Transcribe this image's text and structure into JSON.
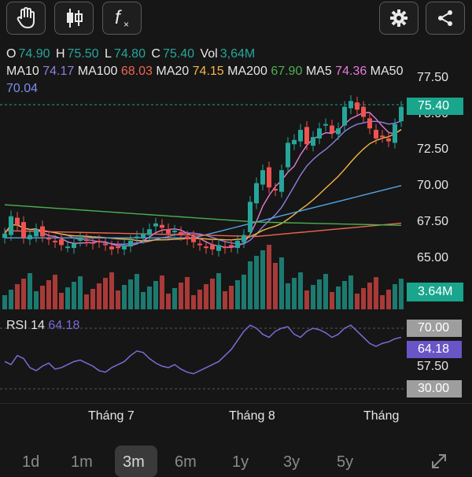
{
  "toolbar": {
    "buttons": [
      {
        "name": "hand-icon"
      },
      {
        "name": "candlestick-icon"
      },
      {
        "name": "function-icon",
        "glyph": "f"
      }
    ],
    "right_buttons": [
      {
        "name": "settings-icon"
      },
      {
        "name": "share-icon"
      }
    ]
  },
  "ohlc": {
    "open_label": "O",
    "open": "74.90",
    "high_label": "H",
    "high": "75.50",
    "low_label": "L",
    "low": "74.80",
    "close_label": "C",
    "close": "75.40",
    "vol_label": "Vol",
    "vol": "3,64M"
  },
  "ma": {
    "ma10_label": "MA10",
    "ma10": "74.17",
    "ma100_label": "MA100",
    "ma100": "68.03",
    "ma20_label": "MA20",
    "ma20": "74.15",
    "ma200_label": "MA200",
    "ma200": "67.90",
    "ma5_label": "MA5",
    "ma5": "74.36",
    "ma50_label": "MA50",
    "ma50": "70.04"
  },
  "price_axis": [
    "77.50",
    "75.00",
    "72.50",
    "70.00",
    "67.50",
    "65.00"
  ],
  "current_price": "75.40",
  "volume_tag": "3.64M",
  "rsi": {
    "label": "RSI 14",
    "value": "64.18",
    "level_70": "70.00",
    "level_now": "64.18",
    "level_57": "57.50",
    "level_30": "30.00"
  },
  "x_axis": [
    "Tháng 7",
    "Tháng 8",
    "Tháng"
  ],
  "ranges": [
    "1d",
    "1m",
    "3m",
    "6m",
    "1y",
    "3y",
    "5y"
  ],
  "active_range": "3m",
  "colors": {
    "up": "#26a69a",
    "down": "#ef5350",
    "rsi": "#7b6bd6"
  }
}
